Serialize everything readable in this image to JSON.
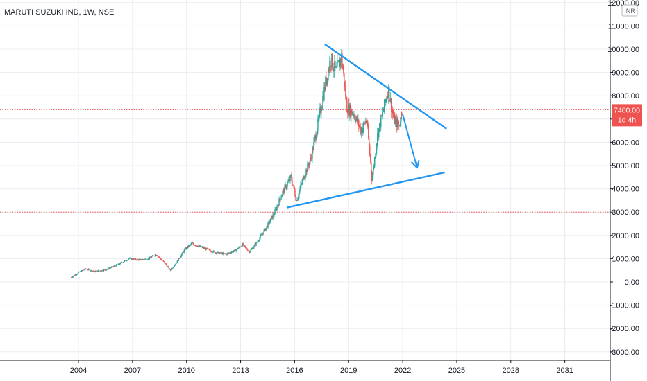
{
  "chart_data": {
    "type": "candlestick",
    "title": "MARUTI SUZUKI IND, 1W, NSE",
    "currency": "INR",
    "current_price": 7400,
    "current_price_label": "7400.00",
    "countdown_label": "1d 4h",
    "y_ticks": [
      12000,
      11000,
      10000,
      9000,
      8000,
      7000,
      6000,
      5000,
      4000,
      3000,
      2000,
      1000,
      0,
      -1000,
      -2000,
      -3000
    ],
    "y_tick_labels": [
      "12000.00",
      "11000.00",
      "10000.00",
      "9000.00",
      "8000.00",
      "7000.00",
      "6000.00",
      "5000.00",
      "4000.00",
      "3000.00",
      "2000.00",
      "1000.00",
      "0.00",
      "-1000.00",
      "-2000.00",
      "-3000.00"
    ],
    "x_ticks": [
      2004,
      2007,
      2010,
      2013,
      2016,
      2019,
      2022,
      2025,
      2028,
      2031
    ],
    "x_tick_labels": [
      "2004",
      "2007",
      "2010",
      "2013",
      "2016",
      "2019",
      "2022",
      "2025",
      "2028",
      "2031"
    ],
    "ylim": [
      -3300,
      12000
    ],
    "xlim": [
      2002.0,
      2033.5
    ],
    "grid": true,
    "horizontal_levels": [
      {
        "value": 7400,
        "style": "dotted",
        "color": "#ef5350"
      },
      {
        "value": 3000,
        "style": "dotted",
        "color": "#ef5350"
      }
    ],
    "price_path": [
      [
        2003.6,
        200
      ],
      [
        2004.0,
        400
      ],
      [
        2004.4,
        560
      ],
      [
        2004.9,
        450
      ],
      [
        2005.5,
        520
      ],
      [
        2006.2,
        750
      ],
      [
        2006.8,
        1000
      ],
      [
        2007.4,
        950
      ],
      [
        2007.9,
        1000
      ],
      [
        2008.3,
        1200
      ],
      [
        2008.8,
        800
      ],
      [
        2009.1,
        500
      ],
      [
        2009.5,
        900
      ],
      [
        2009.9,
        1400
      ],
      [
        2010.3,
        1650
      ],
      [
        2010.8,
        1500
      ],
      [
        2011.3,
        1350
      ],
      [
        2011.7,
        1250
      ],
      [
        2012.2,
        1200
      ],
      [
        2012.7,
        1350
      ],
      [
        2013.1,
        1600
      ],
      [
        2013.5,
        1300
      ],
      [
        2013.9,
        1700
      ],
      [
        2014.4,
        2300
      ],
      [
        2014.9,
        3000
      ],
      [
        2015.3,
        3800
      ],
      [
        2015.8,
        4500
      ],
      [
        2016.1,
        3500
      ],
      [
        2016.5,
        4500
      ],
      [
        2016.9,
        5300
      ],
      [
        2017.3,
        6800
      ],
      [
        2017.7,
        8500
      ],
      [
        2018.0,
        9600
      ],
      [
        2018.3,
        9000
      ],
      [
        2018.6,
        9700
      ],
      [
        2018.9,
        7500
      ],
      [
        2019.3,
        7200
      ],
      [
        2019.7,
        6500
      ],
      [
        2020.0,
        7000
      ],
      [
        2020.3,
        4400
      ],
      [
        2020.6,
        6300
      ],
      [
        2020.9,
        7300
      ],
      [
        2021.2,
        8300
      ],
      [
        2021.5,
        7000
      ],
      [
        2021.8,
        6700
      ],
      [
        2021.95,
        7400
      ]
    ],
    "trendlines": [
      {
        "from": [
          2017.7,
          10200
        ],
        "to": [
          2024.4,
          6600
        ],
        "color": "#2196f3"
      },
      {
        "from": [
          2015.6,
          3200
        ],
        "to": [
          2024.3,
          4700
        ],
        "color": "#2196f3"
      }
    ],
    "arrow": {
      "from": [
        2022.0,
        7200
      ],
      "to": [
        2022.8,
        4900
      ],
      "color": "#2196f3"
    }
  },
  "colors": {
    "up": "#26a69a",
    "down": "#ef5350",
    "grid": "#e9ecf2",
    "price_badge": "#ef5350",
    "trendline": "#2196f3"
  }
}
